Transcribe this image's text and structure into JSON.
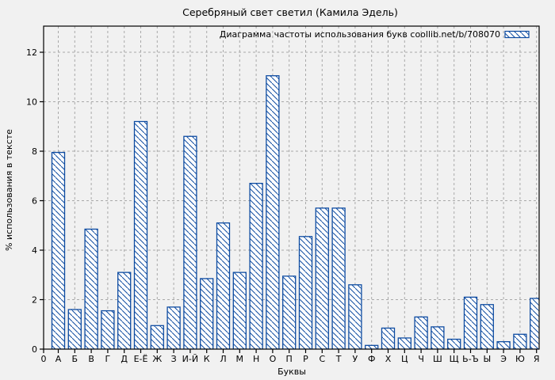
{
  "title": "Серебряный свет светил (Камила Эдель)",
  "colors": {
    "background": "#f1f1f1",
    "bar": "#0d4ba1",
    "bar_fill": "#ffffff",
    "grid": "#a9a9a9",
    "axis": "#000000",
    "text": "#000000"
  },
  "chart_data": {
    "type": "bar",
    "title": "Серебряный свет светил (Камила Эдель)",
    "legend": "Диаграмма частоты использования букв coollib.net/b/708070",
    "legend_position": "top-right",
    "xlabel": "Буквы",
    "ylabel": "% использования в тексте",
    "origin_label": "0",
    "categories": [
      "А",
      "Б",
      "В",
      "Г",
      "Д",
      "Е-Ё",
      "Ж",
      "З",
      "И-Й",
      "К",
      "Л",
      "М",
      "Н",
      "О",
      "П",
      "Р",
      "С",
      "Т",
      "У",
      "Ф",
      "Х",
      "Ц",
      "Ч",
      "Ш",
      "Щ",
      "Ь-Ъ",
      "Ы",
      "Э",
      "Ю",
      "Я"
    ],
    "values": [
      7.95,
      1.6,
      4.85,
      1.55,
      3.1,
      9.2,
      0.95,
      1.7,
      8.6,
      2.85,
      5.1,
      3.1,
      6.7,
      11.05,
      2.95,
      4.55,
      5.7,
      5.7,
      2.6,
      0.15,
      0.85,
      0.45,
      1.3,
      0.9,
      0.4,
      2.1,
      1.8,
      0.3,
      0.6,
      2.05
    ],
    "yticks": [
      0,
      2,
      4,
      6,
      8,
      10,
      12
    ],
    "ylim": [
      0,
      13.1
    ],
    "grid": true,
    "bar_style": "hatched"
  }
}
